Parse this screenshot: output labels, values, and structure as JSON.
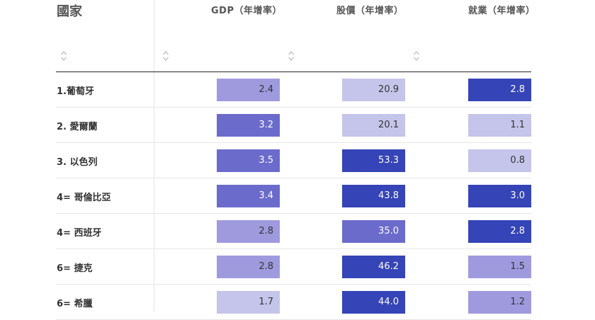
{
  "header": {
    "country": "國家",
    "gdp": "GDP（年增率）",
    "stocks": "股價（年增率）",
    "employment": "就業（年增率）"
  },
  "sort_icon": "sort-updown-icon",
  "colors": {
    "level_1": "#c5c4ea",
    "level_2": "#9f9ade",
    "level_3": "#6b6bcc",
    "level_4": "#3544b6",
    "dark_text": "#333333",
    "light_text": "#ffffff"
  },
  "rows": [
    {
      "country": "1.葡萄牙",
      "gdp": "2.4",
      "stocks": "20.9",
      "employment": "2.8",
      "gdp_level": 2,
      "stocks_level": 1,
      "employment_level": 4
    },
    {
      "country": "2. 愛爾蘭",
      "gdp": "3.2",
      "stocks": "20.1",
      "employment": "1.1",
      "gdp_level": 3,
      "stocks_level": 1,
      "employment_level": 1
    },
    {
      "country": "3. 以色列",
      "gdp": "3.5",
      "stocks": "53.3",
      "employment": "0.8",
      "gdp_level": 3,
      "stocks_level": 4,
      "employment_level": 1
    },
    {
      "country": "4= 哥倫比亞",
      "gdp": "3.4",
      "stocks": "43.8",
      "employment": "3.0",
      "gdp_level": 3,
      "stocks_level": 4,
      "employment_level": 4
    },
    {
      "country": "4= 西班牙",
      "gdp": "2.8",
      "stocks": "35.0",
      "employment": "2.8",
      "gdp_level": 2,
      "stocks_level": 3,
      "employment_level": 4
    },
    {
      "country": "6= 捷克",
      "gdp": "2.8",
      "stocks": "46.2",
      "employment": "1.5",
      "gdp_level": 2,
      "stocks_level": 4,
      "employment_level": 2
    },
    {
      "country": "6= 希臘",
      "gdp": "1.7",
      "stocks": "44.0",
      "employment": "1.2",
      "gdp_level": 1,
      "stocks_level": 4,
      "employment_level": 2
    }
  ]
}
